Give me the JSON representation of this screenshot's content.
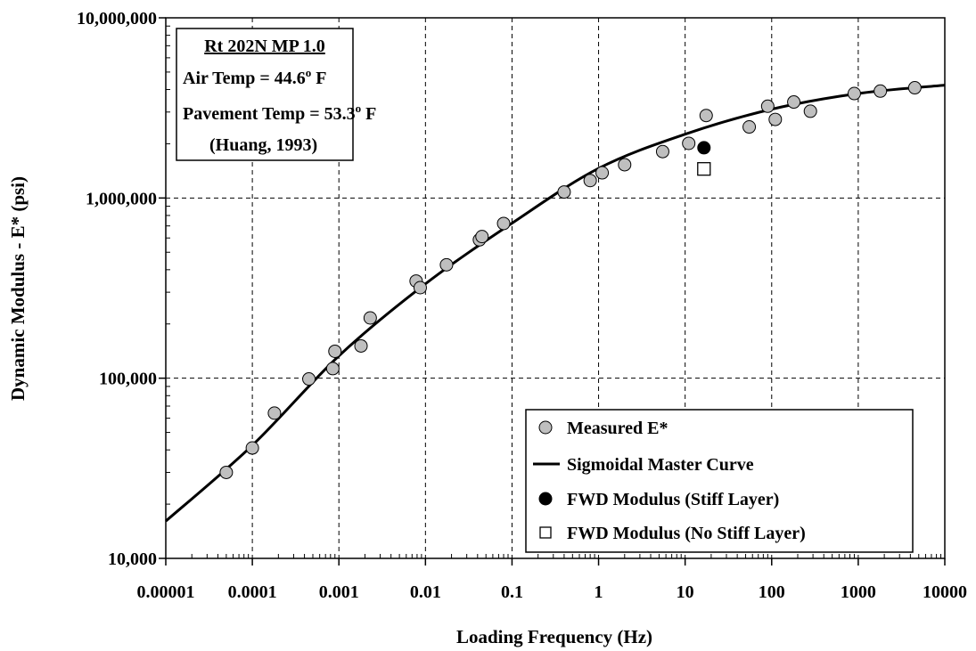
{
  "chart_data": {
    "type": "scatter",
    "xlabel": "Loading Frequency (Hz)",
    "ylabel": "Dynamic Modulus - E* (psi)",
    "x_scale": "log",
    "y_scale": "log",
    "xlim": [
      1e-05,
      10000
    ],
    "ylim": [
      10000,
      10000000
    ],
    "grid": true,
    "x_ticks": [
      {
        "value": 1e-05,
        "label": "0.00001"
      },
      {
        "value": 0.0001,
        "label": "0.0001"
      },
      {
        "value": 0.001,
        "label": "0.001"
      },
      {
        "value": 0.01,
        "label": "0.01"
      },
      {
        "value": 0.1,
        "label": "0.1"
      },
      {
        "value": 1,
        "label": "1"
      },
      {
        "value": 10,
        "label": "10"
      },
      {
        "value": 100,
        "label": "100"
      },
      {
        "value": 1000,
        "label": "1000"
      },
      {
        "value": 10000,
        "label": "10000"
      }
    ],
    "y_ticks": [
      {
        "value": 10000,
        "label": "10,000"
      },
      {
        "value": 100000,
        "label": "100,000"
      },
      {
        "value": 1000000,
        "label": "1,000,000"
      },
      {
        "value": 10000000,
        "label": "10,000,000"
      }
    ],
    "info_box": {
      "title": "Rt 202N MP 1.0",
      "air_temp_prefix": "Air Temp = 44.6",
      "air_temp_sup": "o",
      "air_temp_suffix": " F",
      "pavement_temp_prefix": "Pavement Temp = 53.3",
      "pavement_temp_sup": "o",
      "pavement_temp_suffix": " F",
      "reference": "(Huang, 1993)"
    },
    "legend_position": "bottom-right",
    "series": [
      {
        "name": "Measured E*",
        "kind": "scatter",
        "marker": "circle",
        "color": "#bfbfbf",
        "points": [
          [
            5e-05,
            30000
          ],
          [
            0.0001,
            41000
          ],
          [
            0.00018,
            64000
          ],
          [
            0.00045,
            99000
          ],
          [
            0.00085,
            113000
          ],
          [
            0.0009,
            141000
          ],
          [
            0.0018,
            151000
          ],
          [
            0.0023,
            216000
          ],
          [
            0.0078,
            346000
          ],
          [
            0.0087,
            318000
          ],
          [
            0.0175,
            426000
          ],
          [
            0.042,
            586000
          ],
          [
            0.045,
            611000
          ],
          [
            0.08,
            722000
          ],
          [
            0.4,
            1080000
          ],
          [
            0.8,
            1250000
          ],
          [
            1.1,
            1380000
          ],
          [
            2.0,
            1530000
          ],
          [
            5.5,
            1810000
          ],
          [
            11.0,
            2010000
          ],
          [
            17.5,
            2870000
          ],
          [
            55.0,
            2480000
          ],
          [
            90.0,
            3230000
          ],
          [
            110.0,
            2730000
          ],
          [
            180.0,
            3410000
          ],
          [
            280.0,
            3030000
          ],
          [
            900.0,
            3800000
          ],
          [
            1800.0,
            3920000
          ],
          [
            4500.0,
            4090000
          ]
        ]
      },
      {
        "name": "Sigmoidal Master Curve",
        "kind": "line",
        "color": "#000000",
        "points": [
          [
            1e-05,
            16100
          ],
          [
            0.0001,
            42400
          ],
          [
            0.001,
            133000
          ],
          [
            0.01,
            334000
          ],
          [
            0.1,
            725000
          ],
          [
            1,
            1460000
          ],
          [
            10,
            2260000
          ],
          [
            100,
            3110000
          ],
          [
            1000,
            3800000
          ],
          [
            10000,
            4230000
          ]
        ]
      },
      {
        "name": "FWD Modulus (Stiff Layer)",
        "kind": "scatter",
        "marker": "filled-circle",
        "color": "#000000",
        "points": [
          [
            16.5,
            1900000
          ]
        ]
      },
      {
        "name": "FWD Modulus (No Stiff Layer)",
        "kind": "scatter",
        "marker": "open-square",
        "color": "#ffffff",
        "points": [
          [
            16.5,
            1450000
          ]
        ]
      }
    ]
  }
}
